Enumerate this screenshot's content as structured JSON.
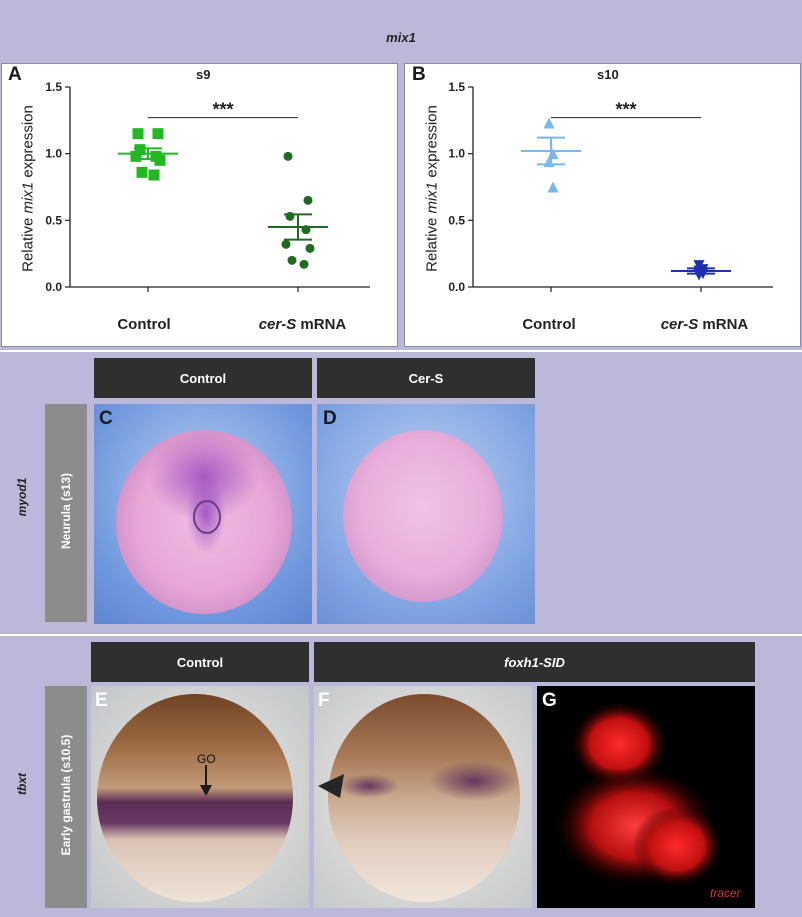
{
  "top_title": "mix1",
  "panel_a": {
    "letter": "A",
    "title": "s9",
    "significance": "***",
    "y_label_pre": "Relative ",
    "y_label_gene": "mix1",
    "y_label_post": " expression",
    "x_label_1": "Control",
    "x_label_2_italic": "cer-S",
    "x_label_2_rest": " mRNA"
  },
  "panel_b": {
    "letter": "B",
    "title": "s10",
    "significance": "***",
    "y_label_pre": "Relative ",
    "y_label_gene": "mix1",
    "y_label_post": " expression",
    "x_label_1": "Control",
    "x_label_2_italic": "cer-S",
    "x_label_2_rest": " mRNA"
  },
  "chart_data": [
    {
      "type": "scatter",
      "title": "s9",
      "ylabel": "Relative mix1 expression",
      "categories": [
        "Control",
        "cer-S mRNA"
      ],
      "ylim": [
        0,
        1.5
      ],
      "yticks": [
        "0.0",
        "0.5",
        "1.0",
        "1.5"
      ],
      "series": [
        {
          "name": "Control",
          "marker": "square",
          "color": "#22b822",
          "values": [
            1.15,
            1.15,
            1.03,
            0.98,
            0.98,
            0.95,
            0.86,
            0.84
          ],
          "mean": 1.0,
          "sem": 0.04
        },
        {
          "name": "cer-S mRNA",
          "marker": "circle",
          "color": "#1f6b1f",
          "values": [
            0.98,
            0.65,
            0.53,
            0.43,
            0.32,
            0.29,
            0.2,
            0.17
          ],
          "mean": 0.45,
          "sem": 0.095
        }
      ],
      "significance": "***"
    },
    {
      "type": "scatter",
      "title": "s10",
      "ylabel": "Relative mix1 expression",
      "categories": [
        "Control",
        "cer-S mRNA"
      ],
      "ylim": [
        0,
        1.5
      ],
      "yticks": [
        "0.0",
        "0.5",
        "1.0",
        "1.5"
      ],
      "series": [
        {
          "name": "Control",
          "marker": "triangle",
          "color": "#79b8ee",
          "values": [
            1.23,
            1.0,
            0.94,
            0.75
          ],
          "mean": 1.02,
          "sem": 0.1
        },
        {
          "name": "cer-S mRNA",
          "marker": "triangle-down",
          "color": "#1f2fae",
          "values": [
            0.16,
            0.13,
            0.12,
            0.1,
            0.09
          ],
          "mean": 0.12,
          "sem": 0.02
        }
      ],
      "significance": "***"
    }
  ],
  "panel_cd": {
    "gene": "myod1",
    "stage": "Neurula (s13)",
    "header_c": "Control",
    "header_d": "Cer-S",
    "letter_c": "C",
    "letter_d": "D"
  },
  "panel_efg": {
    "gene": "tbxt",
    "stage": "Early gastrula (s10.5)",
    "header_e": "Control",
    "header_fg": "foxh1-SID",
    "letter_e": "E",
    "letter_f": "F",
    "letter_g": "G",
    "annotation_go": "GO",
    "tracer_label": "tracer"
  },
  "colors": {
    "band": "#bcb8da",
    "header": "#2f2f2f",
    "control_s9": "#22b822",
    "cer_s9": "#1f6b1f",
    "control_s10": "#79b8ee",
    "cer_s10": "#1f2fae",
    "tracer": "#e03030"
  }
}
